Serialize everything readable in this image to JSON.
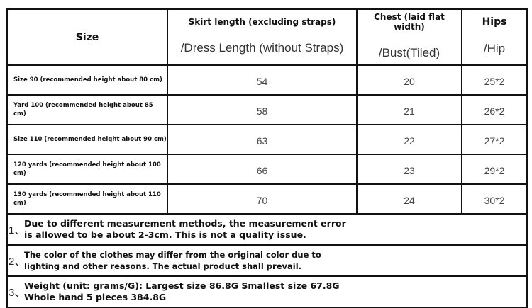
{
  "header": {
    "size": "Size",
    "length_title": "Skirt length (excluding straps)",
    "length_sub": "/Dress Length (without Straps)",
    "chest_title": "Chest (laid flat width)",
    "chest_sub": "/Bust(Tiled)",
    "hips_title": "Hips",
    "hips_sub": "/Hip"
  },
  "rows": [
    {
      "size": "Size 90 (recommended height about 80 cm)",
      "length": "54",
      "chest": "20",
      "hips": "25*2"
    },
    {
      "size": "Yard 100 (recommended height about 85 cm)",
      "length": "58",
      "chest": "21",
      "hips": "26*2"
    },
    {
      "size": "Size 110 (recommended height about 90 cm)",
      "length": "63",
      "chest": "22",
      "hips": "27*2"
    },
    {
      "size": "120 yards (recommended height about 100 cm)",
      "length": "66",
      "chest": "23",
      "hips": "29*2"
    },
    {
      "size": "130 yards (recommended height about 110 cm)",
      "length": "70",
      "chest": "24",
      "hips": "30*2"
    }
  ],
  "notes": [
    {
      "num": "1、",
      "line1": "Due to different measurement methods, the measurement error",
      "line2": "is allowed to be about 2-3cm. This is not a quality issue."
    },
    {
      "num": "2、",
      "line1": "The color of the clothes may differ from the original color due to",
      "line2": "lighting and other reasons. The actual product shall prevail."
    },
    {
      "num": "3、",
      "line1": "Weight (unit: grams/G): Largest size 86.8G Smallest size 67.8G",
      "line2": "Whole hand 5 pieces 384.8G"
    }
  ]
}
